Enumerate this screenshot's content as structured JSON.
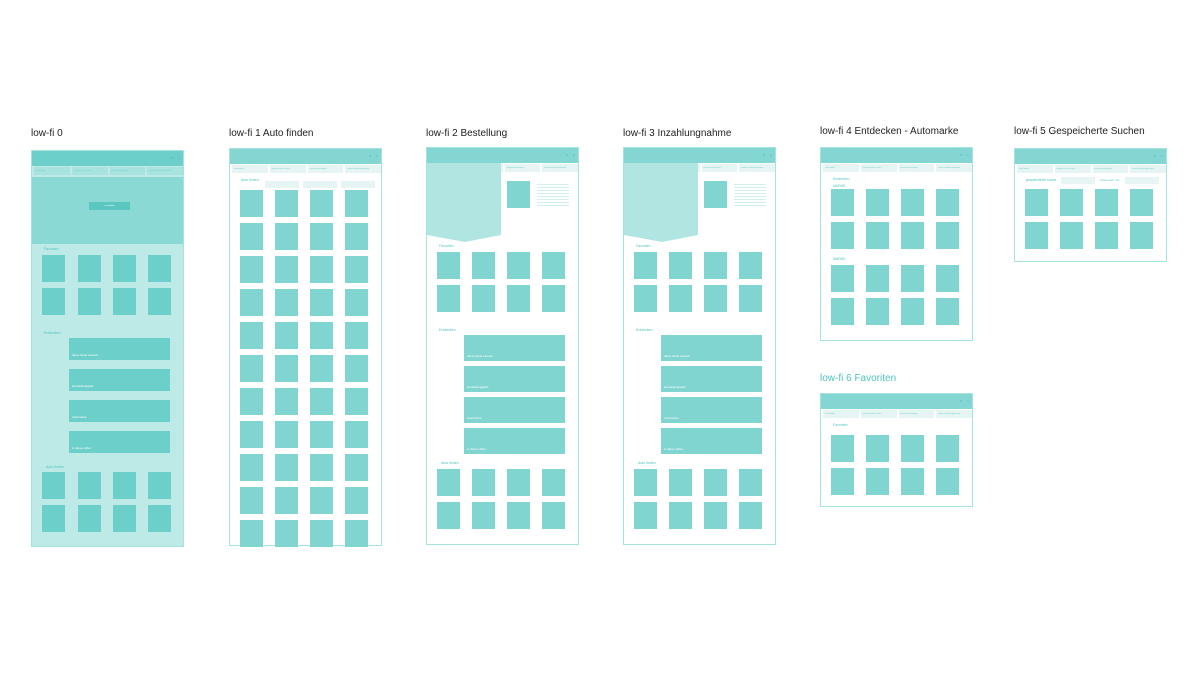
{
  "nav": [
    "auto finden",
    "gespeicherte suchen",
    "meine bestellungen",
    "meine Inzahlungnahmen"
  ],
  "header_icons": [
    "heart-icon",
    "user-icon"
  ],
  "frames": [
    {
      "title": "low-fi  0",
      "hero_button": "auto finden",
      "favorites": "Favoriten",
      "discover": "Entdecken",
      "discover_items": [
        "deine letzte besuch",
        "Herstellungsjahr",
        "Automarke",
        "in deine näher"
      ],
      "find": "Auto finden"
    },
    {
      "title": "low-fi  1 Auto finden",
      "find": "Auto finden"
    },
    {
      "title": "low-fi  2 Bestellung",
      "favorites": "Favoriten",
      "discover": "Entdecken",
      "discover_items": [
        "deine letzte besuch",
        "Herstellungsjahr",
        "Automarke",
        "in deine näher"
      ],
      "find": "Auto finden"
    },
    {
      "title": "low-fi  3 Inzahlungnahme",
      "favorites": "Favoriten",
      "discover": "Entdecken",
      "discover_items": [
        "deine letzte besuch",
        "Herstellungsjahr",
        "Automarke",
        "in deine näher"
      ],
      "find": "Auto finden"
    },
    {
      "title": "low-fi  4 Entdecken - Automarke",
      "discover": "Entdecken",
      "brand1": "MARKE",
      "brand2": "MARKE"
    },
    {
      "title": "low-fi  5 Gespeicherte Suchen",
      "saved": "gespeicherte suche",
      "sort": "sortiert nach: neu"
    },
    {
      "title": "low-fi  6 Favoriten",
      "favorites": "Favoriten"
    }
  ],
  "colors": {
    "accent": "#80d5d1",
    "header": "#84d6d2",
    "frame0_bg": "#bde9e7",
    "frame6_title": "#4fc4bd"
  }
}
